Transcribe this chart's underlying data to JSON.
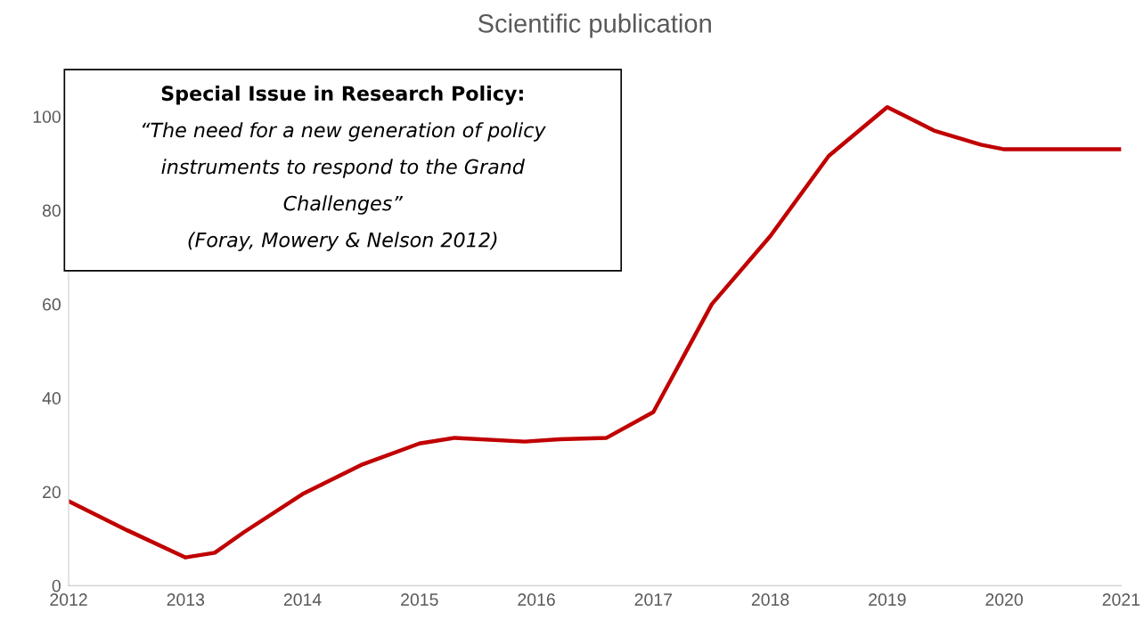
{
  "chart_data": {
    "type": "line",
    "title": "Scientific publication",
    "x": [
      2012,
      2012.5,
      2013,
      2013.25,
      2013.5,
      2014,
      2014.5,
      2015,
      2015.3,
      2015.9,
      2016.2,
      2016.6,
      2017,
      2017.5,
      2018,
      2018.5,
      2019,
      2019.4,
      2019.8,
      2020,
      2021
    ],
    "series": [
      {
        "color": "#c00000",
        "values": [
          18,
          11.8,
          6,
          7,
          11.4,
          19.5,
          25.7,
          30.3,
          31.5,
          30.7,
          31.2,
          31.5,
          37,
          60,
          74.5,
          91.6,
          102,
          97,
          94,
          93,
          93
        ]
      }
    ],
    "xlim": [
      2012,
      2021
    ],
    "xticks": [
      2012,
      2013,
      2014,
      2015,
      2016,
      2017,
      2018,
      2019,
      2020,
      2021
    ],
    "ylim": [
      0,
      110
    ],
    "yticks": [
      0,
      20,
      40,
      60,
      80,
      100
    ],
    "line_style": "solid",
    "annotations": [
      "Special Issue in Research Policy:",
      "“The need for a new generation of policy instruments to respond to the Grand Challenges”",
      "(Foray, Mowery & Nelson 2012)"
    ]
  }
}
